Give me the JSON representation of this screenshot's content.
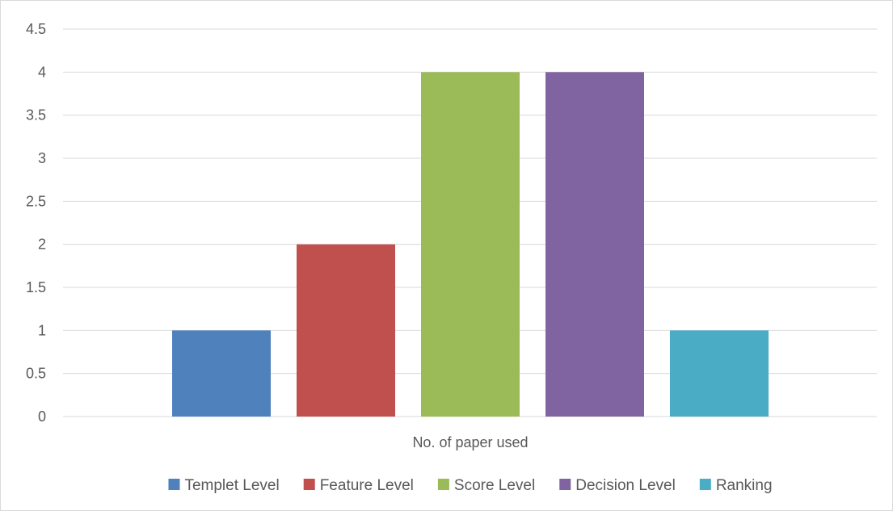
{
  "chart_data": {
    "type": "bar",
    "categories": [
      "No. of paper used"
    ],
    "series": [
      {
        "name": "Templet Level",
        "values": [
          1
        ],
        "color": "#4f81bd"
      },
      {
        "name": "Feature Level",
        "values": [
          2
        ],
        "color": "#c0504d"
      },
      {
        "name": "Score Level",
        "values": [
          4
        ],
        "color": "#9bbb59"
      },
      {
        "name": "Decision Level",
        "values": [
          4
        ],
        "color": "#8064a2"
      },
      {
        "name": "Ranking",
        "values": [
          1
        ],
        "color": "#4bacc6"
      }
    ],
    "xlabel": "No. of paper used",
    "ylim": [
      0,
      4.5
    ],
    "yticks": [
      "0",
      "0.5",
      "1",
      "1.5",
      "2",
      "2.5",
      "3",
      "3.5",
      "4",
      "4.5"
    ],
    "grid": true,
    "legend_position": "bottom",
    "colors": {
      "gridline": "#d9d9d9",
      "text": "#595959"
    }
  }
}
